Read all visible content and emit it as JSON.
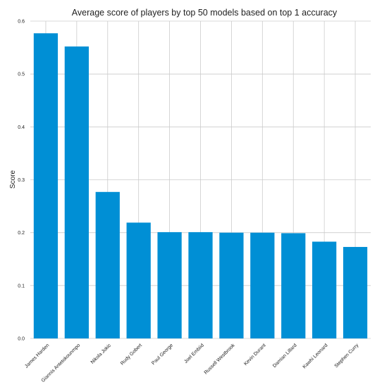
{
  "chart_data": {
    "type": "bar",
    "title": "Average score of players by top 50 models based on top 1 accuracy",
    "xlabel": "",
    "ylabel": "Score",
    "categories": [
      "James Harden",
      "Giannis Antetokounmpo",
      "Nikola Jokic",
      "Rudy Gobert",
      "Paul George",
      "Joel Embiid",
      "Russell Westbrook",
      "Kevin Durant",
      "Damian Lillard",
      "Kawhi Leonard",
      "Stephen Curry"
    ],
    "values": [
      0.577,
      0.552,
      0.277,
      0.219,
      0.201,
      0.201,
      0.2,
      0.2,
      0.199,
      0.183,
      0.173
    ],
    "ylim": [
      0,
      0.6
    ],
    "yticks": [
      "0.0",
      "0.1",
      "0.2",
      "0.3",
      "0.4",
      "0.5",
      "0.6"
    ],
    "grid": true,
    "bar_color": "#008fd5",
    "grid_color": "#cbcbcb"
  }
}
